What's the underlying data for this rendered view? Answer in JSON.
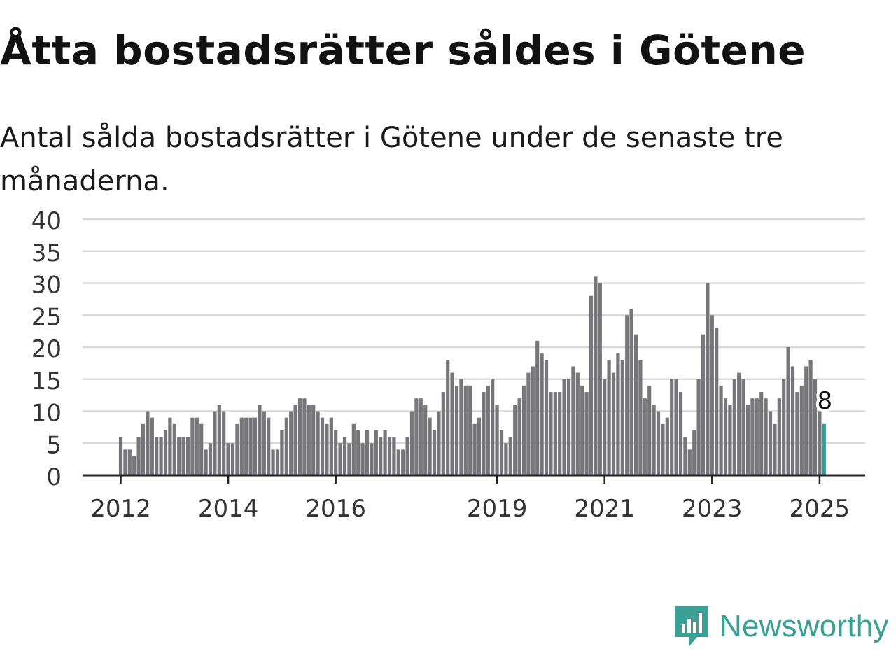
{
  "header": {
    "title": "Åtta bostadsrätter såldes i Götene",
    "subtitle": "Antal sålda bostadsrätter i Götene under de senaste tre månaderna."
  },
  "brand": {
    "name": "Newsworthy",
    "icon": "newsworthy-logo-icon"
  },
  "colors": {
    "bar": "#76767b",
    "highlight": "#2aa198",
    "grid": "#d9d9d9",
    "axis": "#222222",
    "brand": "#3a9f94"
  },
  "chart_data": {
    "type": "bar",
    "ylim": [
      0,
      40
    ],
    "yticks": [
      "0",
      "5",
      "10",
      "15",
      "20",
      "25",
      "30",
      "35",
      "40"
    ],
    "xticks": [
      "2012",
      "2014",
      "2016",
      "2019",
      "2021",
      "2023",
      "2025"
    ],
    "xtick_index": [
      0,
      24,
      48,
      84,
      108,
      132,
      156
    ],
    "grid": true,
    "highlight_label": "8",
    "values": [
      6,
      4,
      4,
      3,
      6,
      8,
      10,
      9,
      6,
      6,
      7,
      9,
      8,
      6,
      6,
      6,
      9,
      9,
      8,
      4,
      5,
      10,
      11,
      10,
      5,
      5,
      8,
      9,
      9,
      9,
      9,
      11,
      10,
      9,
      4,
      4,
      7,
      9,
      10,
      11,
      12,
      12,
      11,
      11,
      10,
      9,
      8,
      9,
      7,
      5,
      6,
      5,
      8,
      7,
      5,
      7,
      5,
      7,
      6,
      7,
      6,
      6,
      4,
      4,
      6,
      10,
      12,
      12,
      11,
      9,
      7,
      10,
      13,
      18,
      16,
      14,
      15,
      14,
      14,
      8,
      9,
      13,
      14,
      15,
      11,
      7,
      5,
      6,
      11,
      12,
      14,
      16,
      17,
      21,
      19,
      18,
      13,
      13,
      13,
      15,
      15,
      17,
      16,
      14,
      13,
      28,
      31,
      30,
      15,
      18,
      16,
      19,
      18,
      25,
      26,
      22,
      18,
      12,
      14,
      11,
      10,
      8,
      9,
      15,
      15,
      13,
      6,
      4,
      7,
      15,
      22,
      30,
      25,
      23,
      14,
      12,
      11,
      15,
      16,
      15,
      11,
      12,
      12,
      13,
      12,
      10,
      8,
      12,
      15,
      20,
      17,
      13,
      14,
      17,
      18,
      15,
      10,
      8
    ]
  }
}
